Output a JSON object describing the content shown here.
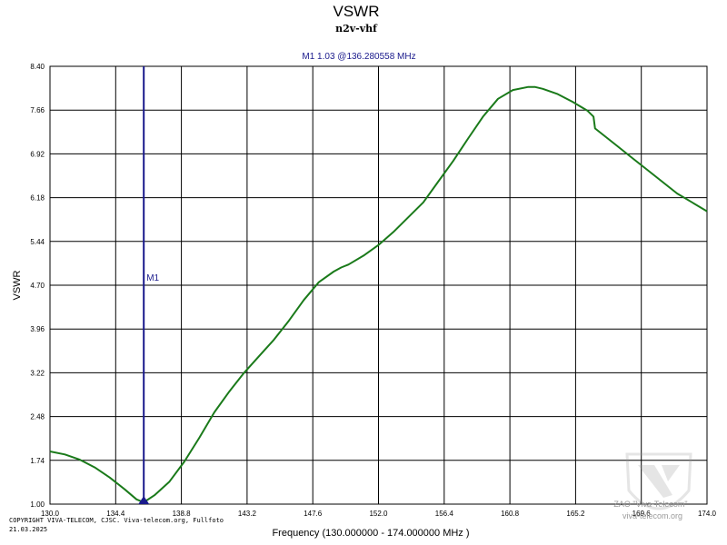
{
  "chart_data": {
    "type": "line",
    "title": "VSWR",
    "subtitle": "n2v-vhf",
    "xlabel": "Frequency (130.000000 - 174.000000 MHz )",
    "ylabel": "VSWR",
    "xlim": [
      130.0,
      174.0
    ],
    "ylim": [
      1.0,
      8.4
    ],
    "x_ticks": [
      "130.0",
      "134.4",
      "138.8",
      "143.2",
      "147.6",
      "152.0",
      "156.4",
      "160.8",
      "165.2",
      "169.6",
      "174.0"
    ],
    "y_ticks": [
      "1.00",
      "1.74",
      "2.48",
      "3.22",
      "3.96",
      "4.70",
      "5.44",
      "6.18",
      "6.92",
      "7.66",
      "8.40"
    ],
    "grid": true,
    "series": [
      {
        "color": "#1a7a1a",
        "x": [
          130.0,
          131.0,
          132.0,
          133.0,
          134.0,
          135.0,
          135.8,
          136.28,
          137.0,
          138.0,
          139.0,
          140.0,
          141.0,
          142.0,
          143.0,
          144.0,
          145.0,
          146.0,
          147.0,
          148.0,
          149.0,
          149.5,
          150.0,
          151.0,
          152.0,
          153.0,
          154.0,
          155.0,
          156.0,
          157.0,
          158.0,
          159.0,
          160.0,
          161.0,
          162.0,
          162.5,
          163.0,
          164.0,
          165.0,
          166.0,
          166.4,
          166.5,
          167.0,
          168.0,
          169.0,
          170.0,
          171.0,
          172.0,
          173.0,
          174.0
        ],
        "values": [
          1.89,
          1.84,
          1.75,
          1.62,
          1.45,
          1.25,
          1.08,
          1.03,
          1.15,
          1.38,
          1.72,
          2.12,
          2.55,
          2.9,
          3.22,
          3.5,
          3.78,
          4.1,
          4.45,
          4.75,
          4.93,
          5.0,
          5.05,
          5.2,
          5.38,
          5.6,
          5.85,
          6.1,
          6.45,
          6.8,
          7.18,
          7.55,
          7.85,
          8.0,
          8.05,
          8.05,
          8.02,
          7.93,
          7.8,
          7.65,
          7.55,
          7.35,
          7.25,
          7.05,
          6.85,
          6.65,
          6.45,
          6.25,
          6.1,
          5.95
        ]
      }
    ],
    "marker": {
      "label": "M1",
      "readout": "M1   1.03 @136.280558 MHz",
      "x": 136.280558,
      "value": 1.03,
      "color": "#1a1a8c"
    }
  },
  "footer": {
    "copyright_line1": "COPYRIGHT VIVA-TELECOM, CJSC. Viva-telecom.org, Fullfoto",
    "copyright_line2": "21.03.2025"
  },
  "watermark": {
    "company": "ZAO \"Viva-Telecom\"",
    "site": "viva-telecom.org"
  }
}
